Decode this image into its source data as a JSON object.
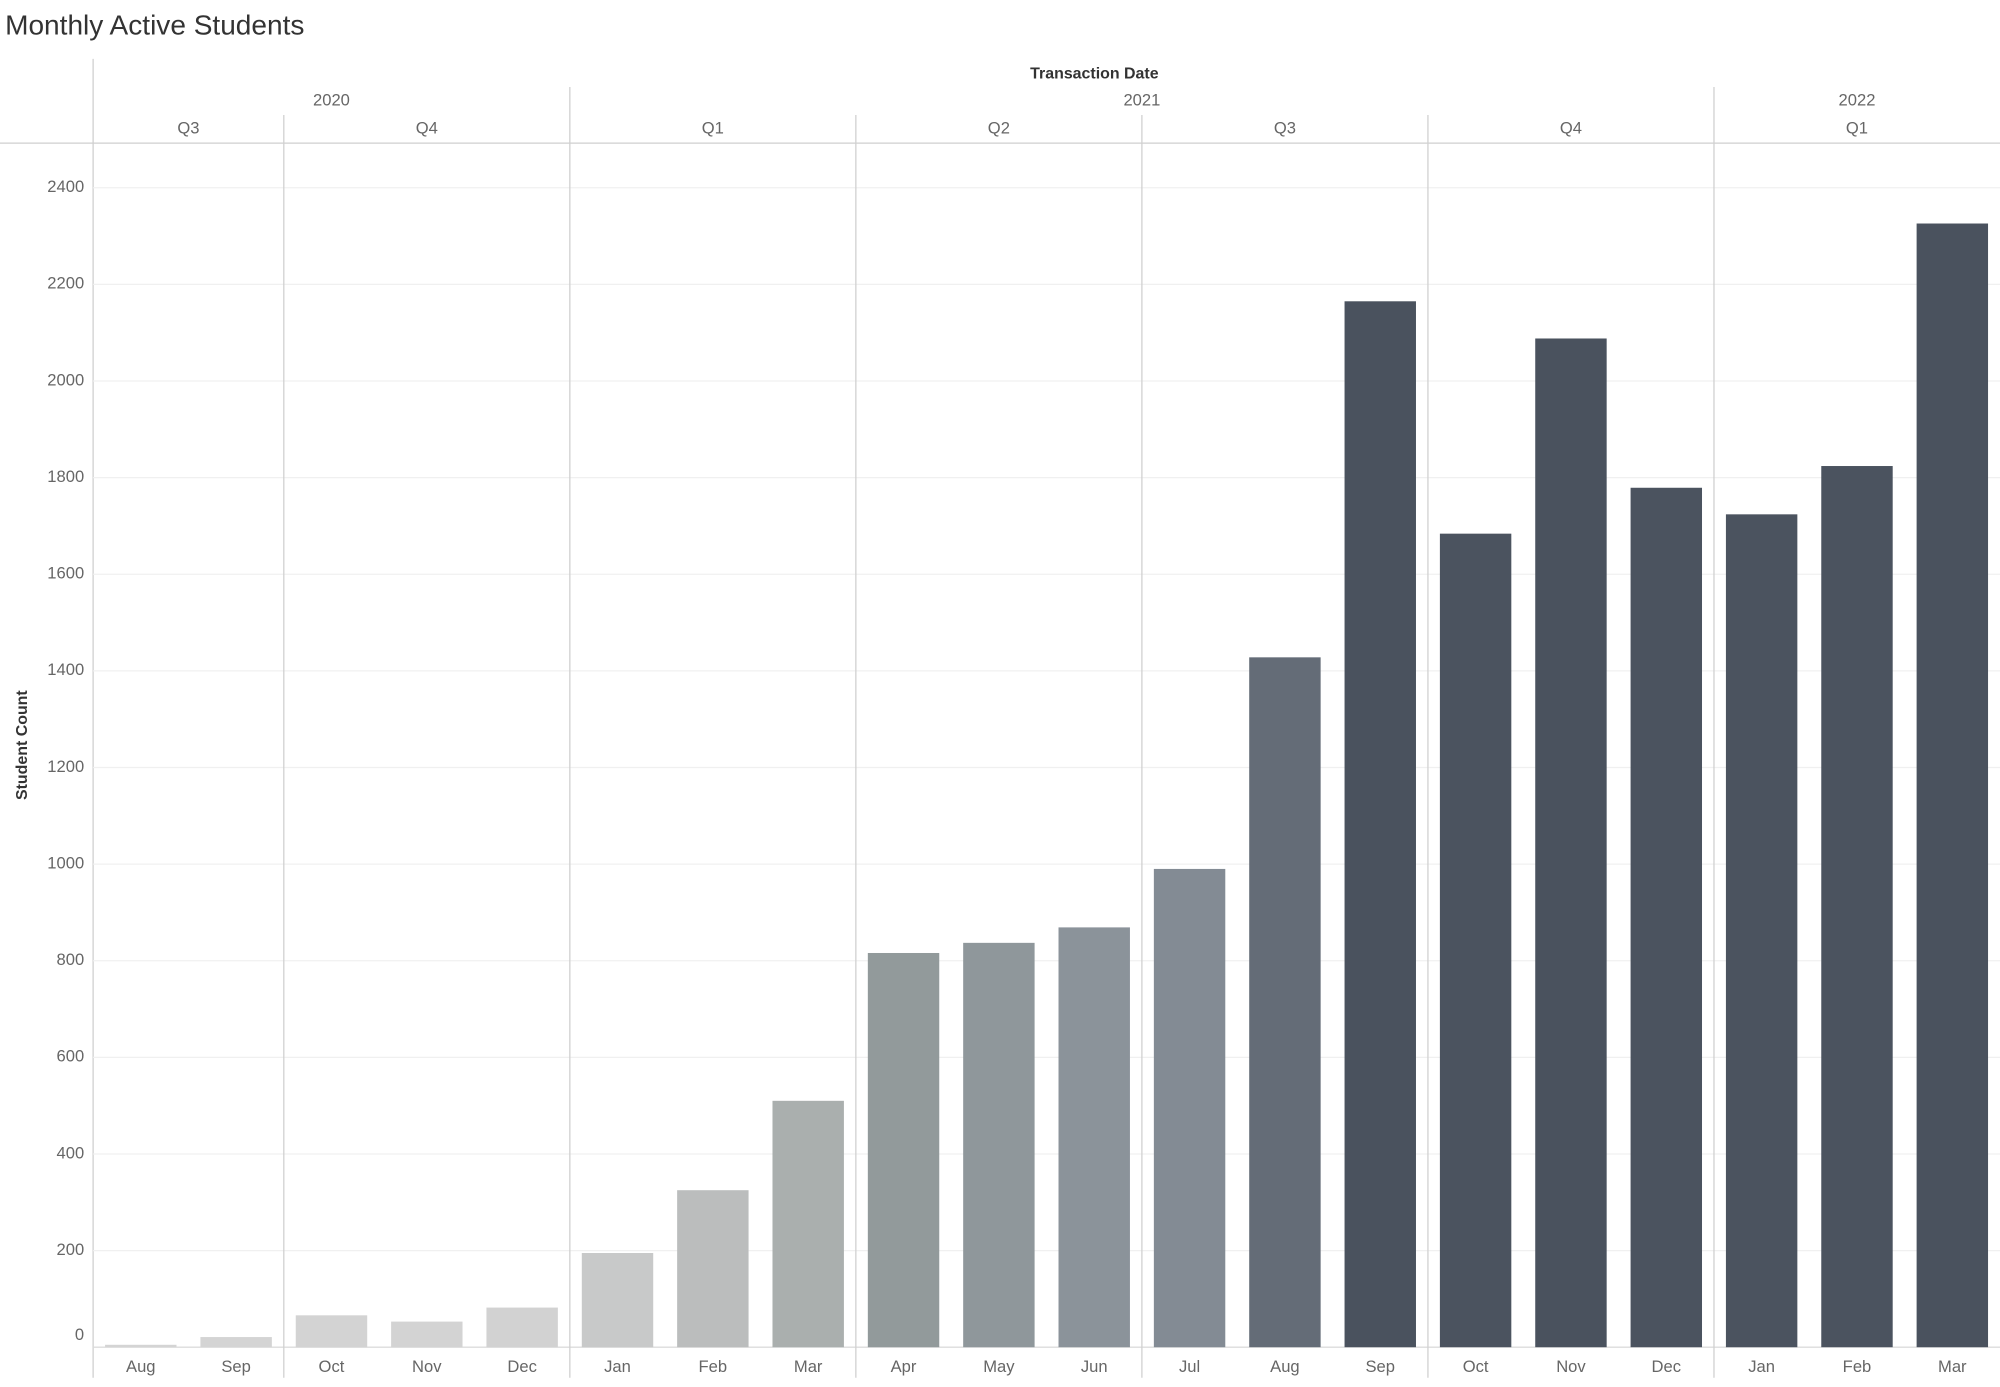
{
  "chart_data": {
    "type": "bar",
    "title": "Monthly Active Students",
    "x_header": "Transaction Date",
    "y_label": "Student Count",
    "years": [
      {
        "year": "2020",
        "quarters": [
          {
            "quarter": "Q3",
            "months": [
              "Aug",
              "Sep"
            ]
          },
          {
            "quarter": "Q4",
            "months": [
              "Oct",
              "Nov",
              "Dec"
            ]
          }
        ]
      },
      {
        "year": "2021",
        "quarters": [
          {
            "quarter": "Q1",
            "months": [
              "Jan",
              "Feb",
              "Mar"
            ]
          },
          {
            "quarter": "Q2",
            "months": [
              "Apr",
              "May",
              "Jun"
            ]
          },
          {
            "quarter": "Q3",
            "months": [
              "Jul",
              "Aug",
              "Sep"
            ]
          },
          {
            "quarter": "Q4",
            "months": [
              "Oct",
              "Nov",
              "Dec"
            ]
          }
        ]
      },
      {
        "year": "2022",
        "quarters": [
          {
            "quarter": "Q1",
            "months": [
              "Jan",
              "Feb",
              "Mar"
            ]
          }
        ]
      }
    ],
    "values": [
      5,
      21,
      66,
      53,
      82,
      195,
      325,
      510,
      816,
      837,
      869,
      990,
      1428,
      2165,
      1684,
      2088,
      1779,
      1724,
      1824,
      2326
    ],
    "colors": [
      "#d4d4d4",
      "#d4d4d4",
      "#d3d3d3",
      "#d3d3d3",
      "#d2d2d2",
      "#c8c9c9",
      "#bbbdbd",
      "#aaafae",
      "#929a9b",
      "#8f979b",
      "#8b939a",
      "#838b94",
      "#646c77",
      "#4a525e",
      "#4b535f",
      "#4a525e",
      "#4b535f",
      "#4b535f",
      "#4b535f",
      "#4a525e"
    ],
    "ylim": [
      0,
      2400
    ],
    "yticks": [
      0,
      200,
      400,
      600,
      800,
      1000,
      1200,
      1400,
      1600,
      1800,
      2000,
      2200,
      2400
    ],
    "grid": true
  }
}
